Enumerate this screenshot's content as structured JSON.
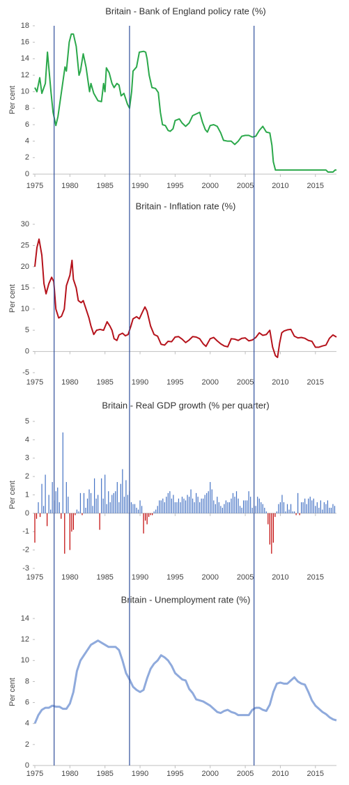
{
  "chart_data": [
    {
      "type": "line",
      "title": "Britain - Bank of England policy rate (%)",
      "ylabel": "Per cent",
      "color": "#2aa84a",
      "x": [
        1975,
        1975.3,
        1975.7,
        1976,
        1976.5,
        1976.8,
        1977.3,
        1977.6,
        1978,
        1978.3,
        1978.8,
        1979.3,
        1979.5,
        1979.9,
        1980.2,
        1980.5,
        1980.9,
        1981.3,
        1981.5,
        1981.9,
        1982.3,
        1982.8,
        1983,
        1983.4,
        1984,
        1984.5,
        1984.8,
        1985,
        1985.2,
        1985.6,
        1986,
        1986.3,
        1986.7,
        1987,
        1987.3,
        1987.7,
        1988.2,
        1988.5,
        1988.8,
        1989,
        1989.5,
        1989.9,
        1990.5,
        1990.8,
        1991,
        1991.3,
        1991.7,
        1992.2,
        1992.6,
        1992.9,
        1993.2,
        1993.6,
        1994,
        1994.3,
        1994.7,
        1995,
        1995.6,
        1996,
        1996.5,
        1997,
        1997.5,
        1998,
        1998.5,
        1998.9,
        1999.3,
        1999.6,
        2000,
        2000.5,
        2001,
        2001.5,
        2001.9,
        2002.5,
        2003,
        2003.5,
        2004,
        2004.5,
        2005,
        2005.5,
        2006,
        2006.5,
        2007,
        2007.5,
        2008,
        2008.5,
        2008.8,
        2009,
        2009.3,
        2010,
        2016.5,
        2016.8,
        2017.5,
        2017.8,
        2018
      ],
      "values": [
        10.5,
        10,
        11.7,
        9.8,
        11,
        14.8,
        10,
        7.5,
        5.9,
        7,
        10,
        13,
        12.5,
        16,
        17,
        17,
        15.5,
        12,
        12.5,
        14.6,
        13,
        10,
        11,
        9.8,
        8.9,
        8.8,
        11,
        10,
        12.9,
        12.3,
        11,
        10.5,
        11,
        10.8,
        9.5,
        9.8,
        8.5,
        8,
        10,
        12.5,
        13,
        14.8,
        14.9,
        14.8,
        14,
        12,
        10.5,
        10.4,
        9.9,
        7.5,
        6,
        5.9,
        5.3,
        5.2,
        5.5,
        6.5,
        6.7,
        6.2,
        5.8,
        6.2,
        7.1,
        7.3,
        7.5,
        6.3,
        5.4,
        5.1,
        5.9,
        6,
        5.8,
        5,
        4.1,
        4,
        4,
        3.6,
        4,
        4.6,
        4.7,
        4.7,
        4.5,
        4.6,
        5.3,
        5.8,
        5.1,
        5,
        3.5,
        1.5,
        0.5,
        0.5,
        0.5,
        0.25,
        0.25,
        0.5,
        0.5
      ],
      "xlim": [
        1975,
        2018
      ],
      "xticks": [
        1975,
        1980,
        1985,
        1990,
        1995,
        2000,
        2005,
        2010,
        2015
      ],
      "ylim": [
        0,
        18
      ],
      "yticks": [
        0,
        2,
        4,
        6,
        8,
        10,
        12,
        14,
        16,
        18
      ]
    },
    {
      "type": "line",
      "title": "Britain - Inflation rate (%)",
      "ylabel": "Per cent",
      "color": "#b5121b",
      "x": [
        1975,
        1975.3,
        1975.6,
        1976,
        1976.3,
        1976.6,
        1977,
        1977.4,
        1977.7,
        1978,
        1978.4,
        1978.8,
        1979.2,
        1979.5,
        1980,
        1980.3,
        1980.5,
        1980.9,
        1981.2,
        1981.6,
        1981.9,
        1982.3,
        1982.7,
        1983,
        1983.4,
        1983.8,
        1984.3,
        1984.8,
        1985.3,
        1985.7,
        1986,
        1986.3,
        1986.7,
        1987,
        1987.5,
        1987.9,
        1988.3,
        1988.7,
        1989,
        1989.5,
        1989.9,
        1990.4,
        1990.7,
        1991,
        1991.5,
        1992,
        1992.5,
        1993,
        1993.5,
        1994,
        1994.5,
        1995,
        1995.5,
        1996,
        1996.5,
        1997,
        1997.5,
        1998,
        1998.5,
        1999,
        1999.4,
        2000,
        2000.5,
        2001,
        2001.5,
        2002,
        2002.5,
        2003,
        2003.5,
        2004,
        2004.5,
        2005,
        2005.5,
        2006,
        2006.5,
        2007,
        2007.5,
        2008,
        2008.5,
        2008.9,
        2009.3,
        2009.6,
        2009.9,
        2010.2,
        2010.5,
        2011,
        2011.5,
        2012,
        2012.5,
        2013,
        2013.5,
        2014,
        2014.5,
        2015,
        2015.5,
        2016,
        2016.5,
        2017,
        2017.5,
        2018
      ],
      "values": [
        20,
        24.5,
        26.5,
        22.7,
        16,
        13.6,
        16,
        17.5,
        16.5,
        10,
        7.9,
        8.3,
        10,
        15.5,
        18,
        21.5,
        17,
        15,
        12,
        11.5,
        12,
        10,
        8,
        6,
        4,
        5,
        5.2,
        5,
        7,
        6,
        5,
        3,
        2.6,
        3.9,
        4.3,
        3.7,
        4,
        6,
        7.7,
        8.2,
        7.7,
        9.5,
        10.5,
        9.5,
        6,
        4,
        3.6,
        1.7,
        1.5,
        2.4,
        2.3,
        3.4,
        3.5,
        2.9,
        2.1,
        2.7,
        3.5,
        3.4,
        3,
        1.8,
        1.2,
        3,
        3.3,
        2.5,
        1.8,
        1.3,
        1.1,
        3,
        2.9,
        2.6,
        3.1,
        3.2,
        2.5,
        2.7,
        3.3,
        4.4,
        3.8,
        4,
        5,
        1,
        -1,
        -1.4,
        2,
        4.4,
        4.8,
        5.1,
        5.2,
        3.6,
        3.2,
        3.3,
        3.1,
        2.6,
        2.4,
        1,
        1,
        1.3,
        1.5,
        3.1,
        3.9,
        3.4
      ],
      "xlim": [
        1975,
        2018
      ],
      "xticks": [
        1975,
        1980,
        1985,
        1990,
        1995,
        2000,
        2005,
        2010,
        2015
      ],
      "ylim": [
        -5,
        30
      ],
      "yticks": [
        -5,
        0,
        5,
        10,
        15,
        20,
        25,
        30
      ]
    },
    {
      "type": "bar",
      "title": "Britain - Real GDP growth (% per quarter)",
      "ylabel": "Per cent",
      "color": "#4472c4",
      "negative_color": "#c00000",
      "x": [
        1975,
        1975.25,
        1975.5,
        1975.75,
        1976,
        1976.25,
        1976.5,
        1976.75,
        1977,
        1977.25,
        1977.5,
        1977.75,
        1978,
        1978.25,
        1978.5,
        1978.75,
        1979,
        1979.25,
        1979.5,
        1979.75,
        1980,
        1980.25,
        1980.5,
        1980.75,
        1981,
        1981.25,
        1981.5,
        1981.75,
        1982,
        1982.25,
        1982.5,
        1982.75,
        1983,
        1983.25,
        1983.5,
        1983.75,
        1984,
        1984.25,
        1984.5,
        1984.75,
        1985,
        1985.25,
        1985.5,
        1985.75,
        1986,
        1986.25,
        1986.5,
        1986.75,
        1987,
        1987.25,
        1987.5,
        1987.75,
        1988,
        1988.25,
        1988.5,
        1988.75,
        1989,
        1989.25,
        1989.5,
        1989.75,
        1990,
        1990.25,
        1990.5,
        1990.75,
        1991,
        1991.25,
        1991.5,
        1991.75,
        1992,
        1992.25,
        1992.5,
        1992.75,
        1993,
        1993.25,
        1993.5,
        1993.75,
        1994,
        1994.25,
        1994.5,
        1994.75,
        1995,
        1995.25,
        1995.5,
        1995.75,
        1996,
        1996.25,
        1996.5,
        1996.75,
        1997,
        1997.25,
        1997.5,
        1997.75,
        1998,
        1998.25,
        1998.5,
        1998.75,
        1999,
        1999.25,
        1999.5,
        1999.75,
        2000,
        2000.25,
        2000.5,
        2000.75,
        2001,
        2001.25,
        2001.5,
        2001.75,
        2002,
        2002.25,
        2002.5,
        2002.75,
        2003,
        2003.25,
        2003.5,
        2003.75,
        2004,
        2004.25,
        2004.5,
        2004.75,
        2005,
        2005.25,
        2005.5,
        2005.75,
        2006,
        2006.25,
        2006.5,
        2006.75,
        2007,
        2007.25,
        2007.5,
        2007.75,
        2008,
        2008.25,
        2008.5,
        2008.75,
        2009,
        2009.25,
        2009.5,
        2009.75,
        2010,
        2010.25,
        2010.5,
        2010.75,
        2011,
        2011.25,
        2011.5,
        2011.75,
        2012,
        2012.25,
        2012.5,
        2012.75,
        2013,
        2013.25,
        2013.5,
        2013.75,
        2014,
        2014.25,
        2014.5,
        2014.75,
        2015,
        2015.25,
        2015.5,
        2015.75,
        2016,
        2016.25,
        2016.5,
        2016.75,
        2017,
        2017.25,
        2017.5,
        2017.75
      ],
      "values": [
        -1.6,
        -0.3,
        0.6,
        -0.2,
        1.6,
        0.4,
        2.1,
        -0.7,
        1.0,
        0.2,
        1.7,
        0.7,
        1.2,
        1.4,
        0.6,
        -0.3,
        4.4,
        -2.2,
        1.7,
        0.9,
        -2.0,
        -1.0,
        -0.9,
        -0.1,
        0.2,
        0.1,
        1.1,
        -0.1,
        1.1,
        0.3,
        0.8,
        1.3,
        1.1,
        0.4,
        1.9,
        0.8,
        1.0,
        -0.9,
        1.9,
        0.8,
        2.1,
        0.5,
        1.2,
        0.6,
        1.0,
        1.1,
        1.2,
        1.7,
        0.6,
        1.6,
        2.4,
        0.9,
        1.8,
        1.0,
        1.2,
        0.6,
        0.5,
        0.5,
        0.3,
        0.2,
        0.7,
        0.4,
        -1.1,
        -0.4,
        -0.6,
        -0.2,
        -0.1,
        -0.1,
        0.1,
        0.2,
        0.4,
        0.7,
        0.7,
        0.8,
        0.6,
        0.9,
        1.1,
        1.2,
        0.8,
        1.0,
        0.6,
        0.6,
        0.8,
        0.6,
        0.9,
        0.8,
        0.7,
        1.0,
        0.9,
        1.3,
        0.8,
        0.6,
        1.1,
        0.9,
        0.6,
        0.8,
        0.8,
        1.0,
        1.1,
        1.2,
        1.7,
        1.3,
        0.7,
        0.5,
        0.9,
        0.6,
        0.4,
        0.3,
        0.5,
        0.7,
        0.6,
        0.6,
        0.8,
        1.1,
        0.9,
        1.2,
        0.8,
        0.4,
        0.3,
        0.7,
        0.7,
        0.7,
        1.2,
        0.9,
        0.3,
        0.4,
        0.4,
        0.9,
        0.8,
        0.6,
        0.5,
        0.3,
        0.1,
        -0.6,
        -1.7,
        -2.2,
        -1.6,
        -0.2,
        0.1,
        0.5,
        0.6,
        1.0,
        0.6,
        0.1,
        0.5,
        0.2,
        0.5,
        0.1,
        0.1,
        -0.1,
        1.1,
        -0.1,
        0.6,
        0.6,
        0.8,
        0.5,
        0.8,
        0.9,
        0.7,
        0.8,
        0.4,
        0.6,
        0.3,
        0.7,
        0.2,
        0.6,
        0.5,
        0.7,
        0.3,
        0.3,
        0.5,
        0.4
      ],
      "xlim": [
        1975,
        2018
      ],
      "xticks": [
        1975,
        1980,
        1985,
        1990,
        1995,
        2000,
        2005,
        2010,
        2015
      ],
      "ylim": [
        -3,
        5
      ],
      "yticks": [
        -3,
        -2,
        -1,
        0,
        1,
        2,
        3,
        4,
        5
      ]
    },
    {
      "type": "line",
      "title": "Britain - Unemployment rate (%)",
      "ylabel": "Per cent",
      "color": "#8faadc",
      "x": [
        1975,
        1975.5,
        1976,
        1976.5,
        1977,
        1977.5,
        1978,
        1978.5,
        1979,
        1979.5,
        1980,
        1980.5,
        1981,
        1981.5,
        1982,
        1982.5,
        1983,
        1983.5,
        1984,
        1984.5,
        1985,
        1985.5,
        1986,
        1986.5,
        1987,
        1987.5,
        1988,
        1988.5,
        1989,
        1989.5,
        1990,
        1990.5,
        1991,
        1991.5,
        1992,
        1992.5,
        1993,
        1993.5,
        1994,
        1994.5,
        1995,
        1995.5,
        1996,
        1996.5,
        1997,
        1997.5,
        1998,
        1998.5,
        1999,
        1999.5,
        2000,
        2000.5,
        2001,
        2001.5,
        2002,
        2002.5,
        2003,
        2003.5,
        2004,
        2004.5,
        2005,
        2005.5,
        2006,
        2006.5,
        2007,
        2007.5,
        2008,
        2008.5,
        2009,
        2009.5,
        2010,
        2010.5,
        2011,
        2011.5,
        2012,
        2012.5,
        2013,
        2013.5,
        2014,
        2014.5,
        2015,
        2015.5,
        2016,
        2016.5,
        2017,
        2017.5,
        2018
      ],
      "values": [
        4,
        4.8,
        5.3,
        5.5,
        5.5,
        5.7,
        5.6,
        5.6,
        5.4,
        5.4,
        5.9,
        7,
        9,
        10,
        10.5,
        11,
        11.5,
        11.7,
        11.9,
        11.7,
        11.5,
        11.3,
        11.3,
        11.3,
        11,
        10,
        8.8,
        8.2,
        7.5,
        7.2,
        7,
        7.2,
        8.3,
        9.2,
        9.7,
        10,
        10.5,
        10.3,
        10,
        9.5,
        8.8,
        8.5,
        8.2,
        8.1,
        7.3,
        6.9,
        6.3,
        6.2,
        6.1,
        5.9,
        5.7,
        5.4,
        5.1,
        5,
        5.2,
        5.3,
        5.1,
        5,
        4.8,
        4.8,
        4.8,
        4.8,
        5.3,
        5.5,
        5.5,
        5.3,
        5.2,
        5.8,
        7,
        7.8,
        7.9,
        7.8,
        7.8,
        8.1,
        8.4,
        8,
        7.8,
        7.7,
        7,
        6.2,
        5.7,
        5.4,
        5.1,
        4.9,
        4.6,
        4.4,
        4.3
      ],
      "xlim": [
        1975,
        2018
      ],
      "xticks": [
        1975,
        1980,
        1985,
        1990,
        1995,
        2000,
        2005,
        2010,
        2015
      ],
      "ylim": [
        0,
        14
      ],
      "yticks": [
        0,
        2,
        4,
        6,
        8,
        10,
        12,
        14
      ]
    }
  ],
  "reference_lines": {
    "x": [
      1977.75,
      1988.5,
      2006.25
    ],
    "color": "#2e4d9a"
  }
}
